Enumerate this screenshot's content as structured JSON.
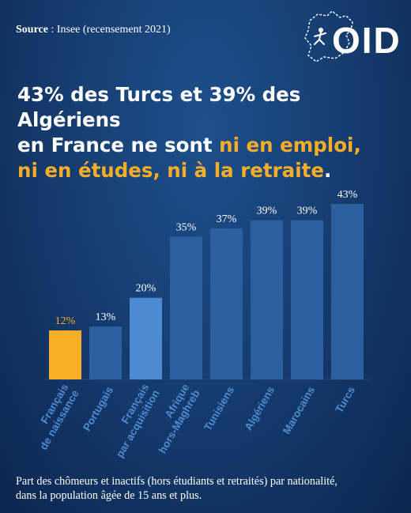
{
  "source": {
    "label": "Source",
    "text": " : Insee (recensement 2021)"
  },
  "logo": {
    "text": "OID"
  },
  "headline": {
    "line1": "43% des Turcs et 39% des Algériens",
    "line2_white": "en France ne sont ",
    "line2_highlight": "ni en emploi,",
    "line3_highlight": "ni en études, ni à la retraite",
    "line3_end": "."
  },
  "colors": {
    "highlight": "#f6ad28",
    "bar_default": "#2c5f9e",
    "bar_highlight": "#f6ad28",
    "bar_accent": "#4e8ad1"
  },
  "chart_data": {
    "type": "bar",
    "categories": [
      "Français de naissance",
      "Portugais",
      "Français par acquisition",
      "Afrique hors-Maghreb",
      "Tunisiens",
      "Algériens",
      "Marocains",
      "Turcs"
    ],
    "category_lines": [
      [
        "Français",
        "de naissance"
      ],
      [
        "Portugais"
      ],
      [
        "Français",
        "par acquisition"
      ],
      [
        "Afrique",
        "hors-Maghreb"
      ],
      [
        "Tunisiens"
      ],
      [
        "Algériens"
      ],
      [
        "Marocains"
      ],
      [
        "Turcs"
      ]
    ],
    "values": [
      12,
      13,
      20,
      35,
      37,
      39,
      39,
      43
    ],
    "value_labels": [
      "12%",
      "13%",
      "20%",
      "35%",
      "37%",
      "39%",
      "39%",
      "43%"
    ],
    "bar_styles": [
      "highlight",
      "default",
      "accent",
      "default",
      "default",
      "default",
      "default",
      "default"
    ],
    "ylim": [
      0,
      43
    ]
  },
  "footnote": {
    "line1": "Part des chômeurs et inactifs (hors étudiants et retraités) par nationalité,",
    "line2": "dans la population âgée de 15 ans et plus."
  }
}
